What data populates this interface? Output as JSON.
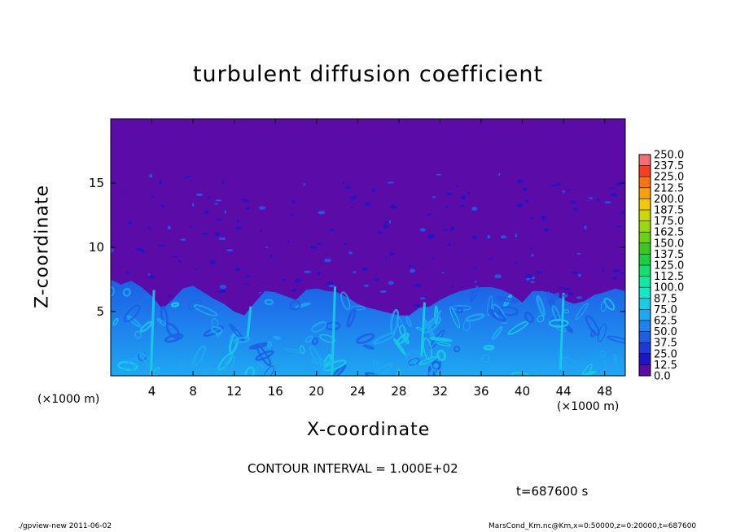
{
  "chart_data": {
    "type": "heatmap",
    "title": "turbulent diffusion coefficient",
    "xlabel": "X-coordinate",
    "ylabel": "Z-coordinate",
    "x_unit": "(×1000 m)",
    "x_unit_right": "(×1000 m)",
    "xlim": [
      0,
      50
    ],
    "ylim": [
      0,
      20
    ],
    "x_ticks": [
      4,
      8,
      12,
      16,
      20,
      24,
      28,
      32,
      36,
      40,
      44,
      48
    ],
    "y_ticks": [
      5,
      10,
      15
    ],
    "contour_interval": "CONTOUR INTERVAL = 1.000E+02",
    "time_label": "t=687600 s",
    "colorbar": {
      "levels": [
        "0.0",
        "12.5",
        "25.0",
        "37.5",
        "50.0",
        "62.5",
        "75.0",
        "87.5",
        "100.0",
        "112.5",
        "125.0",
        "137.5",
        "150.0",
        "162.5",
        "175.0",
        "187.5",
        "200.0",
        "212.5",
        "225.0",
        "237.5",
        "250.0"
      ],
      "colors": [
        "#5a0ba8",
        "#1c16c8",
        "#1b3ad6",
        "#1c5ee4",
        "#1e82ee",
        "#1ea8f2",
        "#19cde6",
        "#14e8c8",
        "#10e8a0",
        "#10e070",
        "#1ad040",
        "#3ac820",
        "#6ad010",
        "#9ad810",
        "#c8d80c",
        "#f0c80a",
        "#f8a00c",
        "#f87414",
        "#f44020",
        "#f47070"
      ]
    },
    "boundary_layer_top_km": [
      7.5,
      7.1,
      7.4,
      6.9,
      6.2,
      5.2,
      5.9,
      6.8,
      7.0,
      6.5,
      6.0,
      5.6,
      5.0,
      4.7,
      5.7,
      6.6,
      6.5,
      6.2,
      5.9,
      6.7,
      6.8,
      6.6,
      6.5,
      6.1,
      5.6,
      5.3,
      5.1,
      4.9,
      4.7,
      4.7,
      5.3,
      5.4,
      5.9,
      6.3,
      6.6,
      6.8,
      6.9,
      6.9,
      6.7,
      6.3,
      5.7,
      6.6,
      6.6,
      6.4,
      5.9,
      5.6,
      5.8,
      6.3,
      6.5,
      6.8,
      6.6
    ],
    "background_value": "0.0"
  },
  "footer": {
    "left": "./gpview-new   2011-06-02",
    "right": "MarsCond_Km.nc@Km,x=0:50000,z=0:20000,t=687600"
  },
  "colors": {
    "background_purple": "#5a0ba8",
    "mixed_layer_blue": "#1e82ee",
    "plume_cyan": "#19cde6"
  }
}
